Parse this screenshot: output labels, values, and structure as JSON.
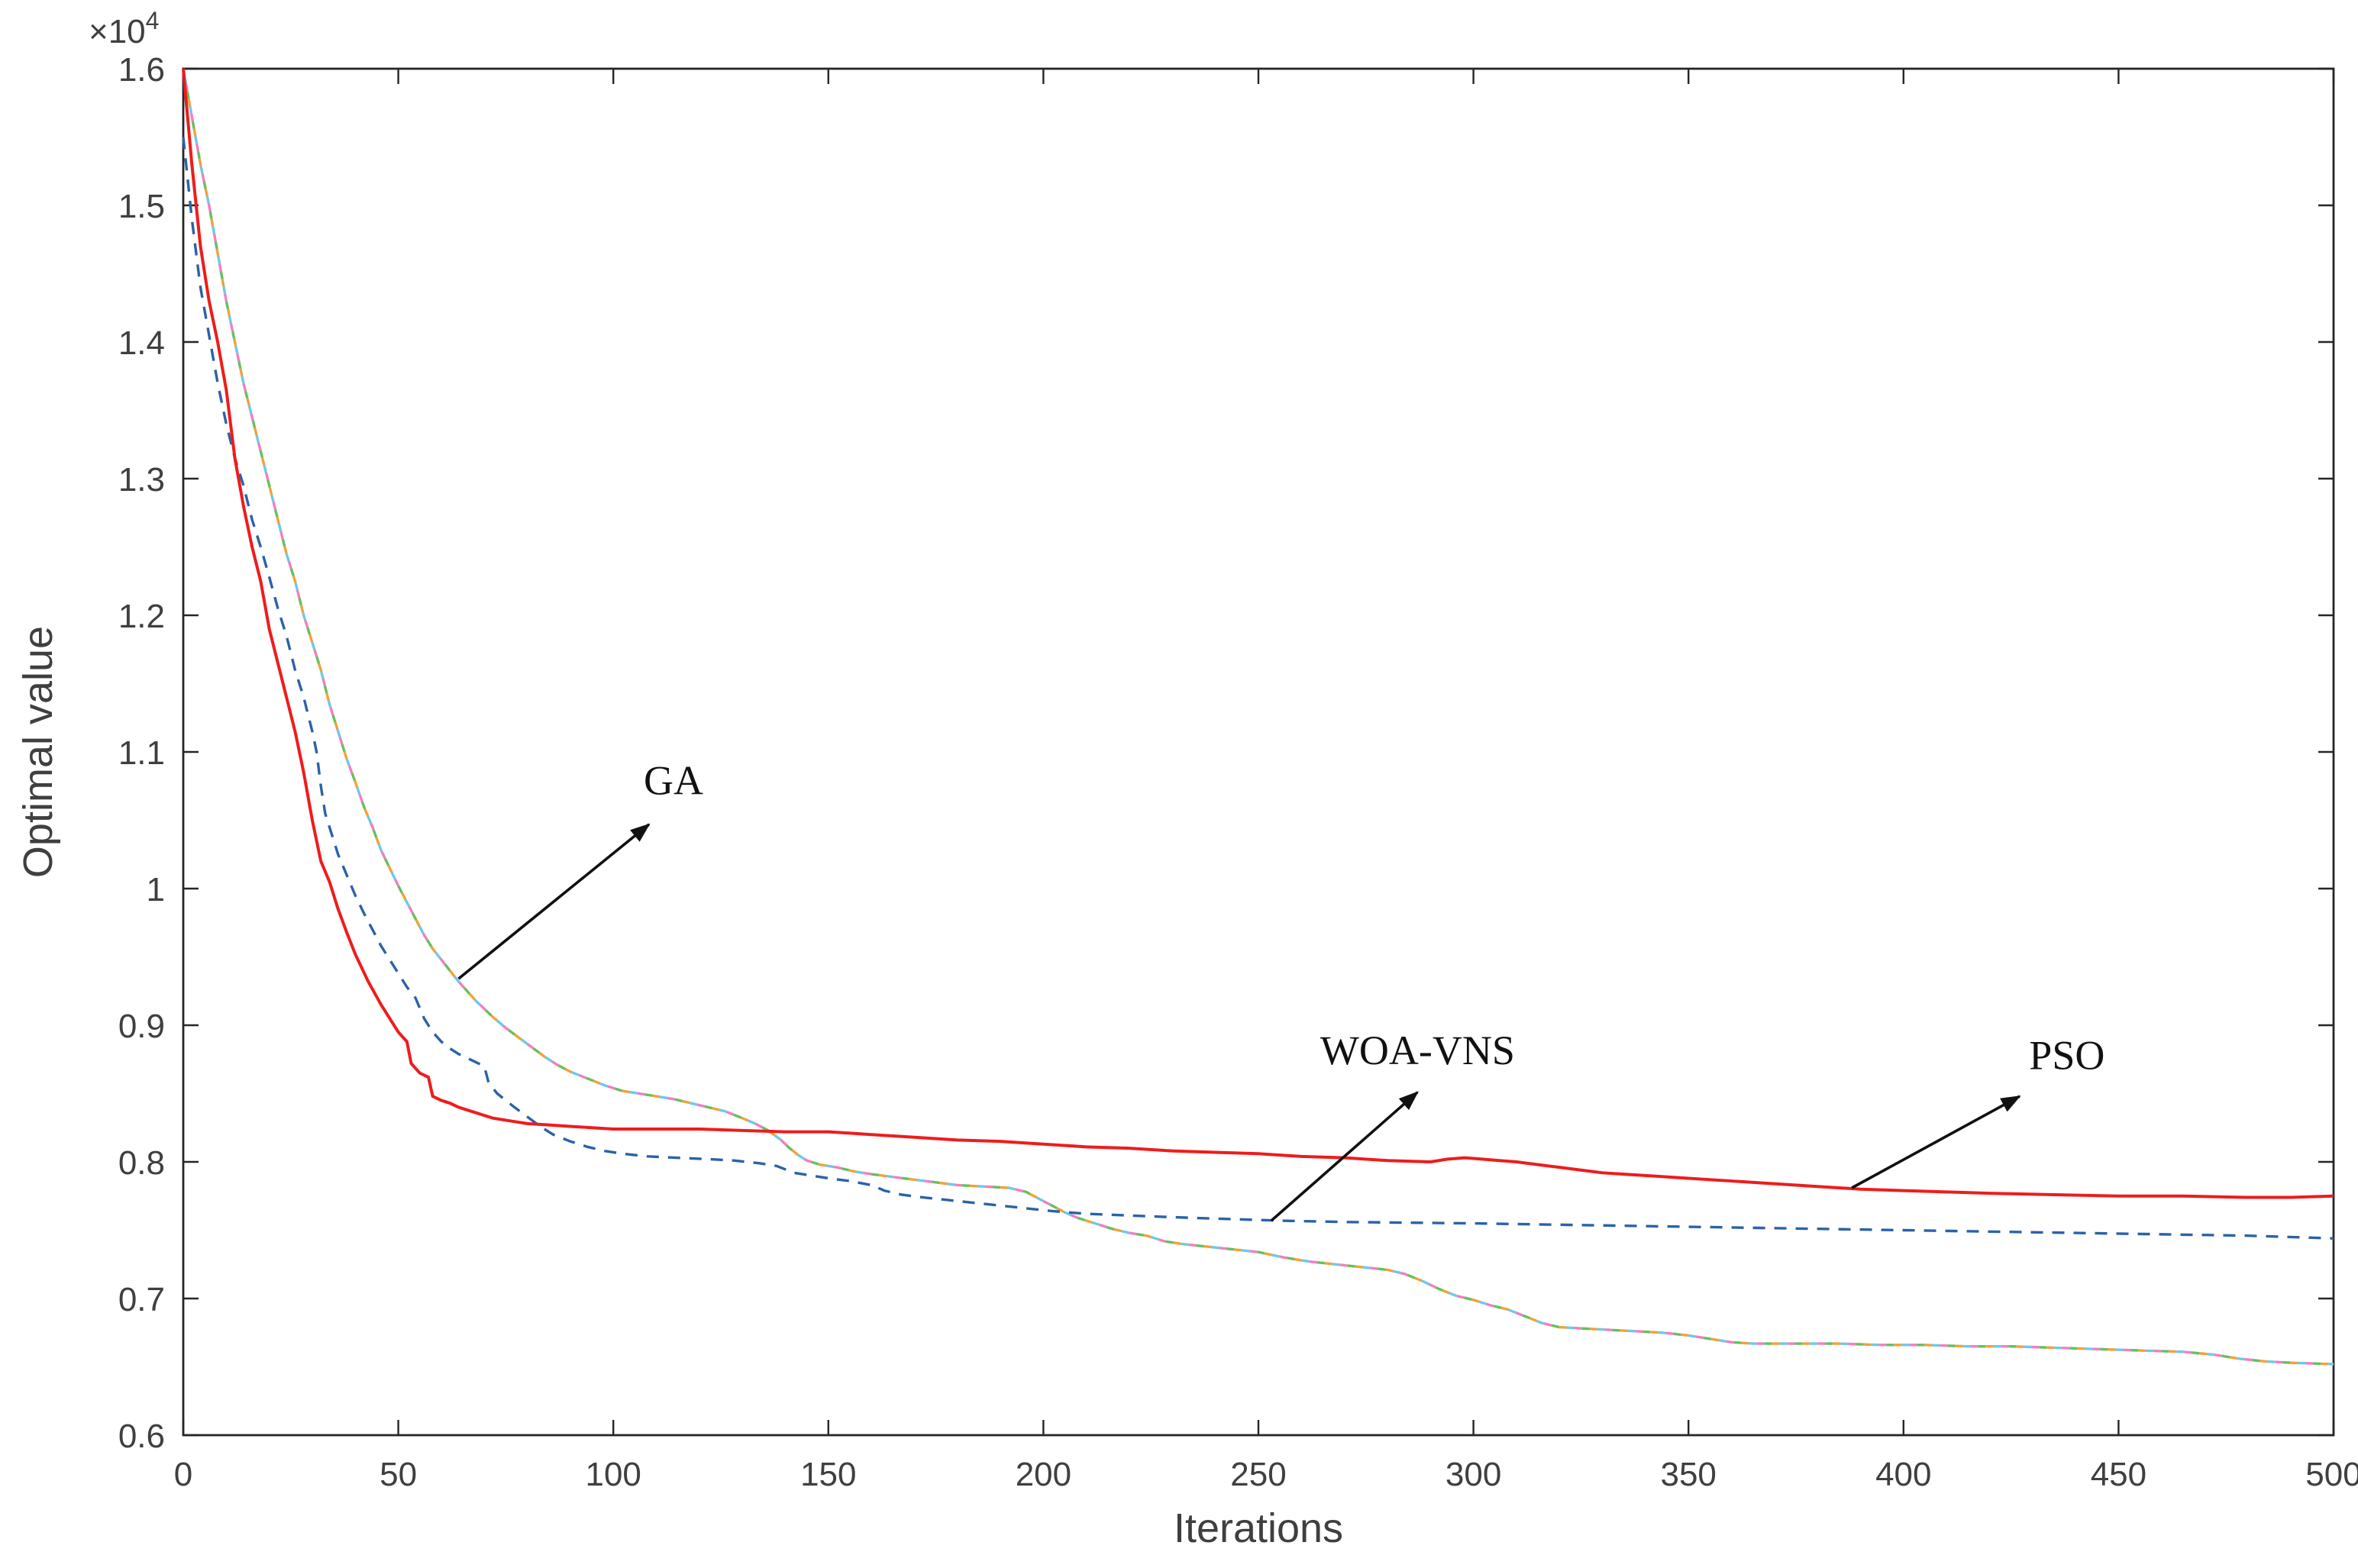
{
  "figure": {
    "background": "#ffffff"
  },
  "chart_data": {
    "type": "line",
    "title": "",
    "xlabel": "Iterations",
    "ylabel": "Optimal value",
    "y_multiplier_base": "×10",
    "y_multiplier_power": "4",
    "xlim": [
      0,
      500
    ],
    "ylim": [
      0.6,
      1.6
    ],
    "grid": false,
    "legend_position": "none",
    "axis_color": "#262626",
    "tick_label_color": "#3f3f3f",
    "x_ticks": [
      0,
      50,
      100,
      150,
      200,
      250,
      300,
      350,
      400,
      450,
      500
    ],
    "x_tick_labels": [
      "0",
      "50",
      "100",
      "150",
      "200",
      "250",
      "300",
      "350",
      "400",
      "450",
      "500"
    ],
    "y_ticks": [
      0.6,
      0.7,
      0.8,
      0.9,
      1,
      1.1,
      1.2,
      1.3,
      1.4,
      1.5,
      1.6
    ],
    "y_tick_labels": [
      "0.6",
      "0.7",
      "0.8",
      "0.9",
      "1",
      "1.1",
      "1.2",
      "1.3",
      "1.4",
      "1.5",
      "1.6"
    ],
    "y_unit_note": "values are in units of 10^4",
    "series": [
      {
        "name": "GA",
        "style": "multicolor-dashed",
        "colors": [
          "#f2a13a",
          "#67bf5c",
          "#ef7fc3",
          "#6fc8e8"
        ],
        "points": [
          [
            0,
            1.6
          ],
          [
            2,
            1.565
          ],
          [
            4,
            1.53
          ],
          [
            6,
            1.5
          ],
          [
            8,
            1.465
          ],
          [
            10,
            1.43
          ],
          [
            12,
            1.4
          ],
          [
            14,
            1.37
          ],
          [
            16,
            1.345
          ],
          [
            18,
            1.32
          ],
          [
            20,
            1.295
          ],
          [
            22,
            1.27
          ],
          [
            24,
            1.245
          ],
          [
            26,
            1.225
          ],
          [
            28,
            1.2
          ],
          [
            30,
            1.18
          ],
          [
            32,
            1.16
          ],
          [
            34,
            1.135
          ],
          [
            36,
            1.115
          ],
          [
            38,
            1.095
          ],
          [
            40,
            1.078
          ],
          [
            42,
            1.06
          ],
          [
            44,
            1.045
          ],
          [
            46,
            1.028
          ],
          [
            48,
            1.015
          ],
          [
            50,
            1.002
          ],
          [
            52,
            0.99
          ],
          [
            54,
            0.978
          ],
          [
            56,
            0.966
          ],
          [
            58,
            0.956
          ],
          [
            60,
            0.948
          ],
          [
            62,
            0.94
          ],
          [
            64,
            0.932
          ],
          [
            66,
            0.925
          ],
          [
            68,
            0.918
          ],
          [
            70,
            0.912
          ],
          [
            72,
            0.906
          ],
          [
            75,
            0.898
          ],
          [
            78,
            0.891
          ],
          [
            81,
            0.884
          ],
          [
            84,
            0.877
          ],
          [
            87,
            0.871
          ],
          [
            90,
            0.866
          ],
          [
            94,
            0.861
          ],
          [
            98,
            0.856
          ],
          [
            102,
            0.852
          ],
          [
            106,
            0.85
          ],
          [
            110,
            0.848
          ],
          [
            114,
            0.846
          ],
          [
            118,
            0.843
          ],
          [
            122,
            0.84
          ],
          [
            126,
            0.837
          ],
          [
            130,
            0.832
          ],
          [
            133,
            0.828
          ],
          [
            136,
            0.823
          ],
          [
            139,
            0.816
          ],
          [
            141,
            0.81
          ],
          [
            143,
            0.805
          ],
          [
            145,
            0.801
          ],
          [
            148,
            0.798
          ],
          [
            152,
            0.796
          ],
          [
            156,
            0.793
          ],
          [
            160,
            0.791
          ],
          [
            165,
            0.789
          ],
          [
            170,
            0.787
          ],
          [
            175,
            0.785
          ],
          [
            180,
            0.783
          ],
          [
            186,
            0.782
          ],
          [
            192,
            0.781
          ],
          [
            196,
            0.778
          ],
          [
            199,
            0.773
          ],
          [
            202,
            0.768
          ],
          [
            205,
            0.763
          ],
          [
            208,
            0.759
          ],
          [
            212,
            0.755
          ],
          [
            216,
            0.751
          ],
          [
            220,
            0.748
          ],
          [
            224,
            0.746
          ],
          [
            228,
            0.742
          ],
          [
            232,
            0.74
          ],
          [
            238,
            0.738
          ],
          [
            244,
            0.736
          ],
          [
            250,
            0.734
          ],
          [
            256,
            0.73
          ],
          [
            262,
            0.727
          ],
          [
            268,
            0.725
          ],
          [
            274,
            0.723
          ],
          [
            280,
            0.721
          ],
          [
            284,
            0.718
          ],
          [
            288,
            0.713
          ],
          [
            292,
            0.707
          ],
          [
            296,
            0.702
          ],
          [
            300,
            0.699
          ],
          [
            304,
            0.695
          ],
          [
            308,
            0.692
          ],
          [
            312,
            0.687
          ],
          [
            316,
            0.682
          ],
          [
            320,
            0.679
          ],
          [
            326,
            0.678
          ],
          [
            332,
            0.677
          ],
          [
            338,
            0.676
          ],
          [
            344,
            0.675
          ],
          [
            350,
            0.673
          ],
          [
            356,
            0.67
          ],
          [
            360,
            0.668
          ],
          [
            365,
            0.667
          ],
          [
            375,
            0.667
          ],
          [
            385,
            0.667
          ],
          [
            395,
            0.666
          ],
          [
            405,
            0.666
          ],
          [
            415,
            0.665
          ],
          [
            425,
            0.665
          ],
          [
            435,
            0.664
          ],
          [
            445,
            0.663
          ],
          [
            455,
            0.662
          ],
          [
            465,
            0.661
          ],
          [
            472,
            0.659
          ],
          [
            478,
            0.656
          ],
          [
            484,
            0.654
          ],
          [
            490,
            0.653
          ],
          [
            500,
            0.652
          ]
        ]
      },
      {
        "name": "WOA-VNS",
        "style": "dashed",
        "color": "#2b62a8",
        "points": [
          [
            0,
            1.55
          ],
          [
            2,
            1.49
          ],
          [
            4,
            1.44
          ],
          [
            6,
            1.405
          ],
          [
            8,
            1.37
          ],
          [
            10,
            1.34
          ],
          [
            12,
            1.315
          ],
          [
            14,
            1.295
          ],
          [
            16,
            1.27
          ],
          [
            18,
            1.25
          ],
          [
            20,
            1.228
          ],
          [
            22,
            1.205
          ],
          [
            24,
            1.185
          ],
          [
            26,
            1.16
          ],
          [
            28,
            1.14
          ],
          [
            30,
            1.115
          ],
          [
            31,
            1.1
          ],
          [
            32,
            1.075
          ],
          [
            33,
            1.055
          ],
          [
            34,
            1.045
          ],
          [
            35,
            1.035
          ],
          [
            36,
            1.025
          ],
          [
            38,
            1.01
          ],
          [
            40,
            0.995
          ],
          [
            42,
            0.982
          ],
          [
            44,
            0.97
          ],
          [
            46,
            0.958
          ],
          [
            48,
            0.948
          ],
          [
            50,
            0.938
          ],
          [
            52,
            0.928
          ],
          [
            54,
            0.92
          ],
          [
            56,
            0.905
          ],
          [
            58,
            0.895
          ],
          [
            60,
            0.888
          ],
          [
            62,
            0.883
          ],
          [
            64,
            0.879
          ],
          [
            66,
            0.876
          ],
          [
            68,
            0.873
          ],
          [
            70,
            0.87
          ],
          [
            71,
            0.858
          ],
          [
            73,
            0.85
          ],
          [
            75,
            0.845
          ],
          [
            77,
            0.84
          ],
          [
            80,
            0.833
          ],
          [
            83,
            0.826
          ],
          [
            86,
            0.82
          ],
          [
            90,
            0.815
          ],
          [
            94,
            0.811
          ],
          [
            98,
            0.808
          ],
          [
            102,
            0.806
          ],
          [
            108,
            0.804
          ],
          [
            115,
            0.803
          ],
          [
            122,
            0.802
          ],
          [
            128,
            0.801
          ],
          [
            134,
            0.799
          ],
          [
            138,
            0.797
          ],
          [
            142,
            0.792
          ],
          [
            146,
            0.79
          ],
          [
            150,
            0.788
          ],
          [
            155,
            0.786
          ],
          [
            160,
            0.783
          ],
          [
            163,
            0.779
          ],
          [
            167,
            0.776
          ],
          [
            172,
            0.774
          ],
          [
            178,
            0.772
          ],
          [
            184,
            0.77
          ],
          [
            190,
            0.768
          ],
          [
            196,
            0.766
          ],
          [
            202,
            0.764
          ],
          [
            210,
            0.762
          ],
          [
            218,
            0.761
          ],
          [
            226,
            0.76
          ],
          [
            235,
            0.759
          ],
          [
            245,
            0.758
          ],
          [
            255,
            0.757
          ],
          [
            270,
            0.756
          ],
          [
            285,
            0.7555
          ],
          [
            300,
            0.755
          ],
          [
            320,
            0.754
          ],
          [
            340,
            0.753
          ],
          [
            360,
            0.752
          ],
          [
            380,
            0.751
          ],
          [
            400,
            0.75
          ],
          [
            420,
            0.749
          ],
          [
            440,
            0.748
          ],
          [
            460,
            0.747
          ],
          [
            480,
            0.746
          ],
          [
            500,
            0.744
          ]
        ]
      },
      {
        "name": "PSO",
        "style": "solid",
        "color": "#ee1c1c",
        "points": [
          [
            0,
            1.6
          ],
          [
            2,
            1.53
          ],
          [
            4,
            1.47
          ],
          [
            6,
            1.43
          ],
          [
            8,
            1.4
          ],
          [
            10,
            1.365
          ],
          [
            12,
            1.315
          ],
          [
            14,
            1.28
          ],
          [
            16,
            1.25
          ],
          [
            18,
            1.225
          ],
          [
            20,
            1.19
          ],
          [
            22,
            1.165
          ],
          [
            24,
            1.14
          ],
          [
            26,
            1.115
          ],
          [
            28,
            1.085
          ],
          [
            30,
            1.05
          ],
          [
            32,
            1.02
          ],
          [
            34,
            1.005
          ],
          [
            36,
            0.985
          ],
          [
            38,
            0.968
          ],
          [
            40,
            0.952
          ],
          [
            43,
            0.932
          ],
          [
            46,
            0.915
          ],
          [
            48,
            0.905
          ],
          [
            50,
            0.895
          ],
          [
            52,
            0.888
          ],
          [
            53,
            0.872
          ],
          [
            55,
            0.865
          ],
          [
            57,
            0.862
          ],
          [
            58,
            0.848
          ],
          [
            60,
            0.845
          ],
          [
            62,
            0.843
          ],
          [
            64,
            0.84
          ],
          [
            68,
            0.836
          ],
          [
            72,
            0.832
          ],
          [
            76,
            0.83
          ],
          [
            80,
            0.828
          ],
          [
            85,
            0.827
          ],
          [
            90,
            0.826
          ],
          [
            95,
            0.825
          ],
          [
            100,
            0.824
          ],
          [
            110,
            0.824
          ],
          [
            120,
            0.824
          ],
          [
            130,
            0.823
          ],
          [
            140,
            0.822
          ],
          [
            150,
            0.822
          ],
          [
            155,
            0.821
          ],
          [
            160,
            0.82
          ],
          [
            170,
            0.818
          ],
          [
            180,
            0.816
          ],
          [
            190,
            0.815
          ],
          [
            200,
            0.813
          ],
          [
            210,
            0.811
          ],
          [
            220,
            0.81
          ],
          [
            230,
            0.808
          ],
          [
            240,
            0.807
          ],
          [
            250,
            0.806
          ],
          [
            260,
            0.804
          ],
          [
            270,
            0.803
          ],
          [
            280,
            0.801
          ],
          [
            290,
            0.8
          ],
          [
            294,
            0.802
          ],
          [
            298,
            0.803
          ],
          [
            302,
            0.802
          ],
          [
            306,
            0.801
          ],
          [
            310,
            0.8
          ],
          [
            315,
            0.798
          ],
          [
            320,
            0.796
          ],
          [
            325,
            0.794
          ],
          [
            330,
            0.792
          ],
          [
            335,
            0.791
          ],
          [
            340,
            0.79
          ],
          [
            350,
            0.788
          ],
          [
            360,
            0.786
          ],
          [
            370,
            0.784
          ],
          [
            380,
            0.782
          ],
          [
            390,
            0.78
          ],
          [
            400,
            0.779
          ],
          [
            410,
            0.778
          ],
          [
            420,
            0.777
          ],
          [
            435,
            0.776
          ],
          [
            450,
            0.775
          ],
          [
            465,
            0.775
          ],
          [
            480,
            0.774
          ],
          [
            490,
            0.774
          ],
          [
            500,
            0.775
          ]
        ]
      }
    ],
    "annotations": [
      {
        "label": "GA",
        "text_xy": [
          114,
          1.069
        ],
        "anchor": "middle",
        "arrow_from": [
          64,
          0.934
        ],
        "arrow_to": [
          108.3,
          1.047
        ]
      },
      {
        "label": "WOA-VNS",
        "text_xy": [
          287,
          0.8715
        ],
        "anchor": "middle",
        "arrow_from": [
          253,
          0.757
        ],
        "arrow_to": [
          287,
          0.851
        ]
      },
      {
        "label": "PSO",
        "text_xy": [
          438,
          0.868
        ],
        "anchor": "middle",
        "arrow_from": [
          388,
          0.781
        ],
        "arrow_to": [
          427,
          0.848
        ]
      }
    ]
  }
}
